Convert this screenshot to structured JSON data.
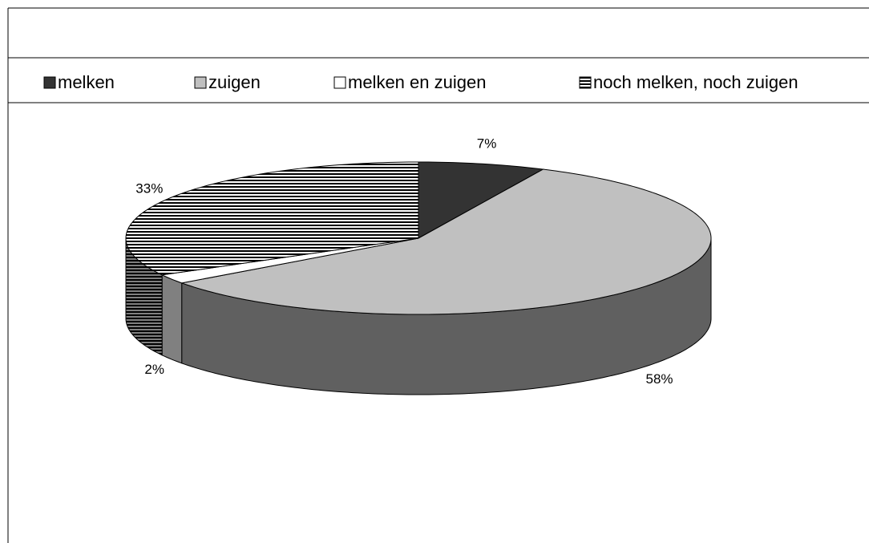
{
  "chart_data": {
    "type": "pie3d",
    "categories": [
      "melken",
      "zuigen",
      "melken en zuigen",
      "noch melken, noch zuigen"
    ],
    "values": [
      7,
      58,
      2,
      33
    ],
    "value_labels": [
      "7%",
      "58%",
      "2%",
      "33%"
    ],
    "colors": [
      "#333333",
      "#c0c0c0",
      "#ffffff",
      "#000000"
    ],
    "hatch": [
      false,
      false,
      false,
      true
    ],
    "legend": "top"
  }
}
